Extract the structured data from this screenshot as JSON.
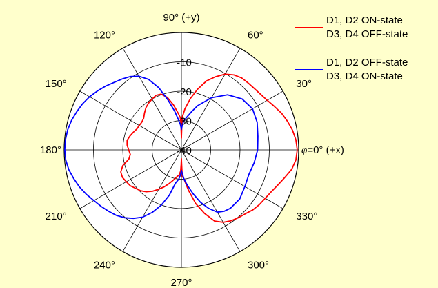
{
  "chart_data": {
    "type": "polar-line",
    "radial_axis": {
      "ticks": [
        -10,
        -20,
        -30,
        -40
      ],
      "range": [
        -40,
        0
      ]
    },
    "angular_axis": {
      "tick_labels": [
        {
          "angle": 0,
          "label": "=0° (+x)",
          "prefix": "φ"
        },
        {
          "angle": 30,
          "label": "30°"
        },
        {
          "angle": 60,
          "label": "60°"
        },
        {
          "angle": 90,
          "label": "90° (+y)"
        },
        {
          "angle": 120,
          "label": "120°"
        },
        {
          "angle": 150,
          "label": "150°"
        },
        {
          "angle": 180,
          "label": "180°"
        },
        {
          "angle": 210,
          "label": "210°"
        },
        {
          "angle": 240,
          "label": "240°"
        },
        {
          "angle": 270,
          "label": "270°"
        },
        {
          "angle": 300,
          "label": "300°"
        },
        {
          "angle": 330,
          "label": "330°"
        }
      ]
    },
    "legend": {
      "placement": "top-right"
    },
    "series": [
      {
        "name_line1": "D1, D2 ON-state",
        "name_line2": "D3, D4 OFF-state",
        "color": "#ff0000",
        "angles": [
          0,
          5,
          10,
          15,
          20,
          25,
          30,
          35,
          40,
          45,
          50,
          55,
          60,
          65,
          70,
          75,
          80,
          85,
          88,
          89,
          90,
          91,
          92,
          95,
          100,
          105,
          110,
          115,
          120,
          125,
          130,
          135,
          140,
          145,
          150,
          155,
          160,
          165,
          170,
          175,
          180,
          185,
          190,
          195,
          200,
          205,
          210,
          215,
          220,
          225,
          230,
          235,
          240,
          245,
          250,
          255,
          260,
          265,
          268,
          269,
          270,
          271,
          272,
          275,
          280,
          285,
          290,
          295,
          300,
          305,
          310,
          315,
          320,
          325,
          330,
          335,
          340,
          345,
          350,
          355,
          360
        ],
        "values": [
          -0.5,
          -0.8,
          -1.5,
          -2.5,
          -3.6,
          -5,
          -6.2,
          -7,
          -7.5,
          -7.8,
          -8,
          -8.8,
          -10.2,
          -12.5,
          -15,
          -18.6,
          -22.2,
          -25.9,
          -28.5,
          -31.2,
          -36,
          -31.2,
          -29,
          -27.5,
          -24.5,
          -21.5,
          -19.8,
          -19.5,
          -20,
          -20.5,
          -21.2,
          -22.2,
          -23.2,
          -23.5,
          -23.4,
          -23.2,
          -22.5,
          -21.8,
          -21.2,
          -21.4,
          -22,
          -22.5,
          -21.8,
          -19.3,
          -18,
          -17.8,
          -18.3,
          -18.7,
          -19.6,
          -20.3,
          -21.4,
          -22.8,
          -24.5,
          -26.1,
          -27.8,
          -29.3,
          -30.6,
          -31.5,
          -32.8,
          -35,
          -37,
          -34.8,
          -31,
          -30,
          -26,
          -21,
          -17,
          -13.2,
          -11.5,
          -10.5,
          -9.8,
          -9.2,
          -8.2,
          -7.5,
          -7,
          -6.2,
          -5,
          -3.5,
          -1.8,
          -0.8,
          -0.5
        ]
      },
      {
        "name_line1": "D1, D2 OFF-state",
        "name_line2": "D3, D4 ON-state",
        "color": "#0000ff",
        "angles": [
          0,
          10,
          20,
          30,
          40,
          50,
          60,
          70,
          75,
          80,
          85,
          88,
          90,
          92,
          95,
          100,
          105,
          110,
          115,
          120,
          125,
          130,
          135,
          140,
          145,
          150,
          155,
          160,
          165,
          170,
          175,
          180,
          185,
          190,
          195,
          200,
          205,
          210,
          215,
          220,
          225,
          230,
          235,
          240,
          245,
          250,
          255,
          260,
          265,
          268,
          270,
          272,
          275,
          280,
          285,
          290,
          295,
          300,
          305,
          310,
          320,
          330,
          340,
          350,
          360
        ],
        "values": [
          -14,
          -13.5,
          -12.5,
          -12,
          -13,
          -15.5,
          -19.5,
          -24,
          -26.5,
          -28.5,
          -30,
          -31.5,
          -33,
          -31.5,
          -30,
          -26.5,
          -22.5,
          -17.5,
          -13.5,
          -11,
          -9.5,
          -8.5,
          -7.5,
          -6.2,
          -5,
          -3.8,
          -2.8,
          -2,
          -1.2,
          -0.6,
          -0.3,
          -0.2,
          -0.4,
          -1,
          -2,
          -3,
          -4.2,
          -5.5,
          -6.5,
          -7.5,
          -8.5,
          -9.8,
          -11.5,
          -13.5,
          -16.5,
          -20,
          -24,
          -28.5,
          -30,
          -31.5,
          -33,
          -32,
          -30,
          -27.5,
          -24.5,
          -21,
          -18,
          -15.5,
          -14.5,
          -14,
          -14,
          -15,
          -15.5,
          -14.8,
          -14
        ]
      }
    ]
  }
}
